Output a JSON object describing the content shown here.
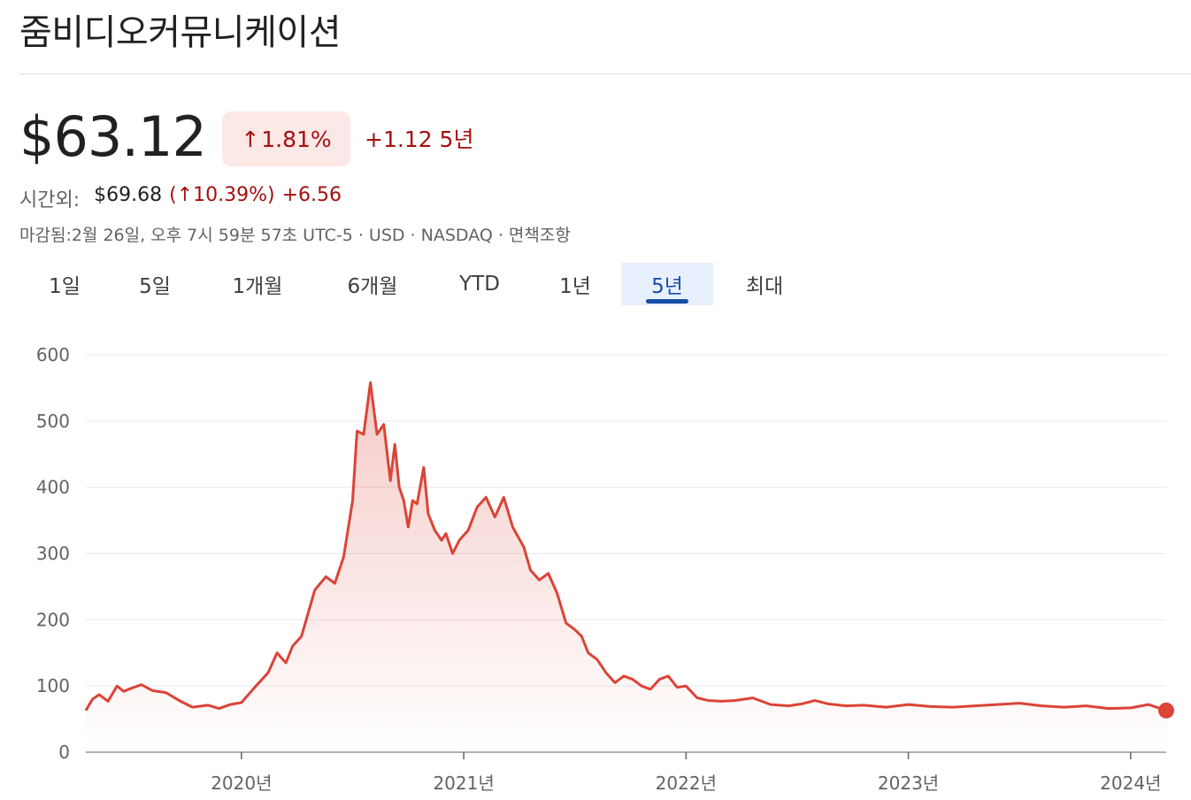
{
  "header": {
    "title": "줌비디오커뮤니케이션"
  },
  "quote": {
    "price": "$63.12",
    "change_arrow": "↑",
    "change_pct": "1.81%",
    "change_abs": "+1.12 5년",
    "after_hours_label": "시간외:",
    "after_hours_price": "$69.68",
    "after_hours_pct": "(↑10.39%)",
    "after_hours_change": "+6.56",
    "meta": "마감됨:2월 26일, 오후 7시 59분 57초 UTC-5 · USD · NASDAQ · 면책조항"
  },
  "tabs": [
    {
      "label": "1일",
      "active": false
    },
    {
      "label": "5일",
      "active": false
    },
    {
      "label": "1개월",
      "active": false
    },
    {
      "label": "6개월",
      "active": false
    },
    {
      "label": "YTD",
      "active": false
    },
    {
      "label": "1년",
      "active": false
    },
    {
      "label": "5년",
      "active": true
    },
    {
      "label": "최대",
      "active": false
    }
  ],
  "colors": {
    "line": "#db4437",
    "accent": "#174ea6",
    "negative_text": "#a50e0e",
    "badge_bg": "#fce8e6"
  },
  "chart_data": {
    "type": "area",
    "title": "",
    "xlabel": "",
    "ylabel": "",
    "ylim": [
      0,
      600
    ],
    "yticks": [
      "0",
      "100",
      "200",
      "300",
      "400",
      "500",
      "600"
    ],
    "xticks": [
      {
        "label": "2020년",
        "value": 2020.0
      },
      {
        "label": "2021년",
        "value": 2021.0
      },
      {
        "label": "2022년",
        "value": 2022.0
      },
      {
        "label": "2023년",
        "value": 2023.0
      },
      {
        "label": "2024년",
        "value": 2024.0
      }
    ],
    "xlim": [
      2019.3,
      2024.16
    ],
    "grid": true,
    "series": [
      {
        "x": [
          2019.3,
          2019.33,
          2019.36,
          2019.4,
          2019.44,
          2019.47,
          2019.5,
          2019.55,
          2019.6,
          2019.66,
          2019.72,
          2019.78,
          2019.85,
          2019.9,
          2019.95,
          2020.0,
          2020.06,
          2020.12,
          2020.16,
          2020.2,
          2020.23,
          2020.27,
          2020.3,
          2020.33,
          2020.38,
          2020.42,
          2020.46,
          2020.5,
          2020.52,
          2020.55,
          2020.58,
          2020.61,
          2020.64,
          2020.67,
          2020.69,
          2020.71,
          2020.73,
          2020.75,
          2020.77,
          2020.79,
          2020.82,
          2020.84,
          2020.87,
          2020.9,
          2020.92,
          2020.95,
          2020.98,
          2021.02,
          2021.06,
          2021.1,
          2021.14,
          2021.18,
          2021.22,
          2021.27,
          2021.3,
          2021.34,
          2021.38,
          2021.42,
          2021.46,
          2021.5,
          2021.53,
          2021.56,
          2021.6,
          2021.64,
          2021.68,
          2021.72,
          2021.76,
          2021.8,
          2021.84,
          2021.88,
          2021.92,
          2021.96,
          2022.0,
          2022.05,
          2022.1,
          2022.16,
          2022.22,
          2022.3,
          2022.38,
          2022.46,
          2022.52,
          2022.58,
          2022.64,
          2022.72,
          2022.8,
          2022.9,
          2023.0,
          2023.1,
          2023.2,
          2023.3,
          2023.4,
          2023.5,
          2023.6,
          2023.7,
          2023.8,
          2023.9,
          2024.0,
          2024.08,
          2024.16
        ],
        "values": [
          63,
          80,
          87,
          77,
          100,
          92,
          96,
          102,
          93,
          90,
          78,
          68,
          71,
          66,
          72,
          75,
          98,
          120,
          150,
          135,
          160,
          175,
          210,
          245,
          265,
          255,
          295,
          380,
          485,
          480,
          558,
          480,
          495,
          410,
          465,
          400,
          380,
          340,
          380,
          375,
          430,
          360,
          335,
          320,
          330,
          300,
          320,
          335,
          370,
          385,
          355,
          385,
          340,
          310,
          275,
          260,
          270,
          240,
          195,
          185,
          175,
          150,
          140,
          120,
          105,
          115,
          110,
          100,
          95,
          110,
          115,
          98,
          100,
          82,
          78,
          77,
          78,
          82,
          72,
          70,
          73,
          78,
          73,
          70,
          71,
          68,
          72,
          69,
          68,
          70,
          72,
          74,
          70,
          68,
          70,
          66,
          67,
          72,
          63
        ]
      }
    ]
  }
}
